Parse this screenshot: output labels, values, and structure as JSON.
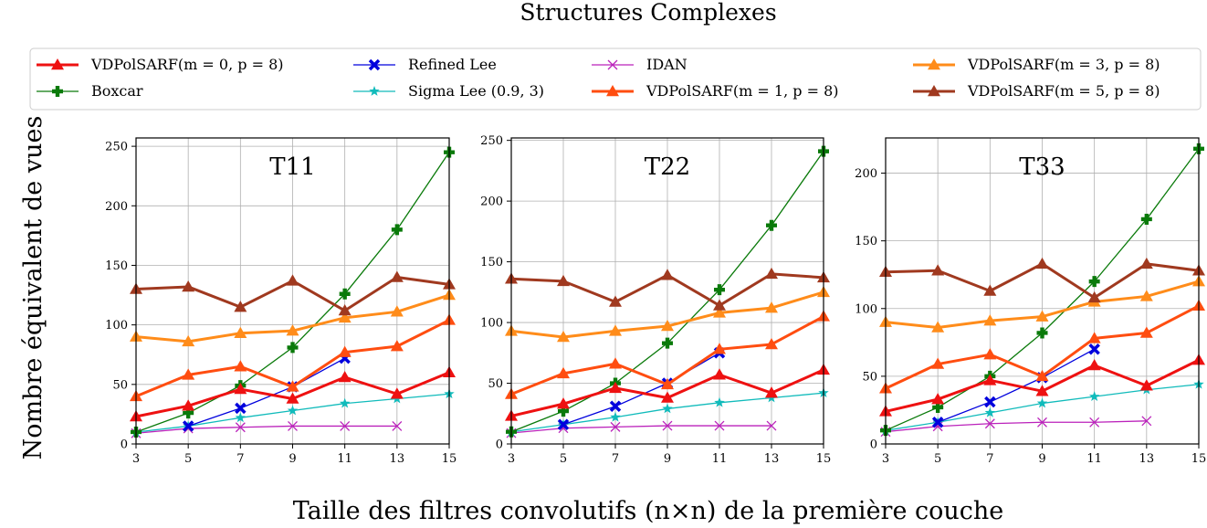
{
  "figure": {
    "title": "Structures Complexes",
    "xlabel": "Taille des filtres convolutifs (n×n) de la première couche",
    "ylabel": "Nombre équivalent de vues"
  },
  "legend": [
    {
      "label": "VDPolSARF(m = 0, p = 8)",
      "color": "#ee1111",
      "marker": "triangle"
    },
    {
      "label": "Boxcar",
      "color": "#0a7a0a",
      "marker": "plus"
    },
    {
      "label": "Refined Lee",
      "color": "#0000dd",
      "marker": "x-filled"
    },
    {
      "label": "Sigma Lee (0.9, 3)",
      "color": "#11bbbb",
      "marker": "star"
    },
    {
      "label": "IDAN",
      "color": "#bb22bb",
      "marker": "x"
    },
    {
      "label": "VDPolSARF(m = 1, p = 8)",
      "color": "#ff4d10",
      "marker": "triangle"
    },
    {
      "label": "VDPolSARF(m = 3, p = 8)",
      "color": "#ff8c1a",
      "marker": "triangle"
    },
    {
      "label": "VDPolSARF(m = 5, p = 8)",
      "color": "#a0391f",
      "marker": "triangle"
    }
  ],
  "chart_data": [
    {
      "type": "line",
      "title": "T11",
      "x": [
        3,
        5,
        7,
        9,
        11,
        13,
        15
      ],
      "xticks": [
        "3",
        "5",
        "7",
        "9",
        "11",
        "13",
        "15"
      ],
      "ylim": [
        0,
        257
      ],
      "yticks": [
        0,
        50,
        100,
        150,
        200,
        250
      ],
      "grid": true,
      "series": [
        {
          "name": "IDAN",
          "values": [
            9,
            13,
            14,
            15,
            15,
            15,
            null
          ]
        },
        {
          "name": "Sigma Lee (0.9, 3)",
          "values": [
            10,
            15,
            22,
            28,
            34,
            38,
            42
          ]
        },
        {
          "name": "Refined Lee",
          "values": [
            null,
            15,
            30,
            48,
            72,
            null,
            null
          ]
        },
        {
          "name": "Boxcar",
          "values": [
            10,
            26,
            49,
            81,
            126,
            180,
            245
          ]
        },
        {
          "name": "VDPolSARF(m = 0, p = 8)",
          "values": [
            23,
            32,
            46,
            38,
            56,
            42,
            60
          ]
        },
        {
          "name": "VDPolSARF(m = 1, p = 8)",
          "values": [
            40,
            58,
            65,
            48,
            77,
            82,
            104
          ]
        },
        {
          "name": "VDPolSARF(m = 3, p = 8)",
          "values": [
            90,
            86,
            93,
            95,
            106,
            111,
            125
          ]
        },
        {
          "name": "VDPolSARF(m = 5, p = 8)",
          "values": [
            130,
            132,
            115,
            137,
            112,
            140,
            134
          ]
        }
      ]
    },
    {
      "type": "line",
      "title": "T22",
      "x": [
        3,
        5,
        7,
        9,
        11,
        13,
        15
      ],
      "xticks": [
        "3",
        "5",
        "7",
        "9",
        "11",
        "13",
        "15"
      ],
      "ylim": [
        0,
        252
      ],
      "yticks": [
        0,
        50,
        100,
        150,
        200,
        250
      ],
      "grid": true,
      "series": [
        {
          "name": "IDAN",
          "values": [
            9,
            13,
            14,
            15,
            15,
            15,
            null
          ]
        },
        {
          "name": "Sigma Lee (0.9, 3)",
          "values": [
            10,
            16,
            22,
            29,
            34,
            38,
            42
          ]
        },
        {
          "name": "Refined Lee",
          "values": [
            null,
            16,
            31,
            50,
            75,
            null,
            null
          ]
        },
        {
          "name": "Boxcar",
          "values": [
            10,
            27,
            50,
            83,
            127,
            180,
            241
          ]
        },
        {
          "name": "VDPolSARF(m = 0, p = 8)",
          "values": [
            23,
            33,
            46,
            38,
            57,
            42,
            61
          ]
        },
        {
          "name": "VDPolSARF(m = 1, p = 8)",
          "values": [
            41,
            58,
            66,
            49,
            78,
            82,
            105
          ]
        },
        {
          "name": "VDPolSARF(m = 3, p = 8)",
          "values": [
            93,
            88,
            93,
            97,
            108,
            112,
            125
          ]
        },
        {
          "name": "VDPolSARF(m = 5, p = 8)",
          "values": [
            136,
            134,
            117,
            139,
            114,
            140,
            137
          ]
        }
      ]
    },
    {
      "type": "line",
      "title": "T33",
      "x": [
        3,
        5,
        7,
        9,
        11,
        13,
        15
      ],
      "xticks": [
        "3",
        "5",
        "7",
        "9",
        "11",
        "13",
        "15"
      ],
      "ylim": [
        0,
        226
      ],
      "yticks": [
        0,
        50,
        100,
        150,
        200
      ],
      "grid": true,
      "series": [
        {
          "name": "IDAN",
          "values": [
            9,
            13,
            15,
            16,
            16,
            17,
            null
          ]
        },
        {
          "name": "Sigma Lee (0.9, 3)",
          "values": [
            10,
            16,
            23,
            30,
            35,
            40,
            44
          ]
        },
        {
          "name": "Refined Lee",
          "values": [
            null,
            16,
            31,
            49,
            70,
            null,
            null
          ]
        },
        {
          "name": "Boxcar",
          "values": [
            10,
            27,
            50,
            82,
            120,
            166,
            218
          ]
        },
        {
          "name": "VDPolSARF(m = 0, p = 8)",
          "values": [
            24,
            33,
            47,
            39,
            58,
            43,
            62
          ]
        },
        {
          "name": "VDPolSARF(m = 1, p = 8)",
          "values": [
            41,
            59,
            66,
            50,
            78,
            82,
            102
          ]
        },
        {
          "name": "VDPolSARF(m = 3, p = 8)",
          "values": [
            90,
            86,
            91,
            94,
            105,
            109,
            120
          ]
        },
        {
          "name": "VDPolSARF(m = 5, p = 8)",
          "values": [
            127,
            128,
            113,
            133,
            108,
            133,
            128
          ]
        }
      ]
    }
  ]
}
